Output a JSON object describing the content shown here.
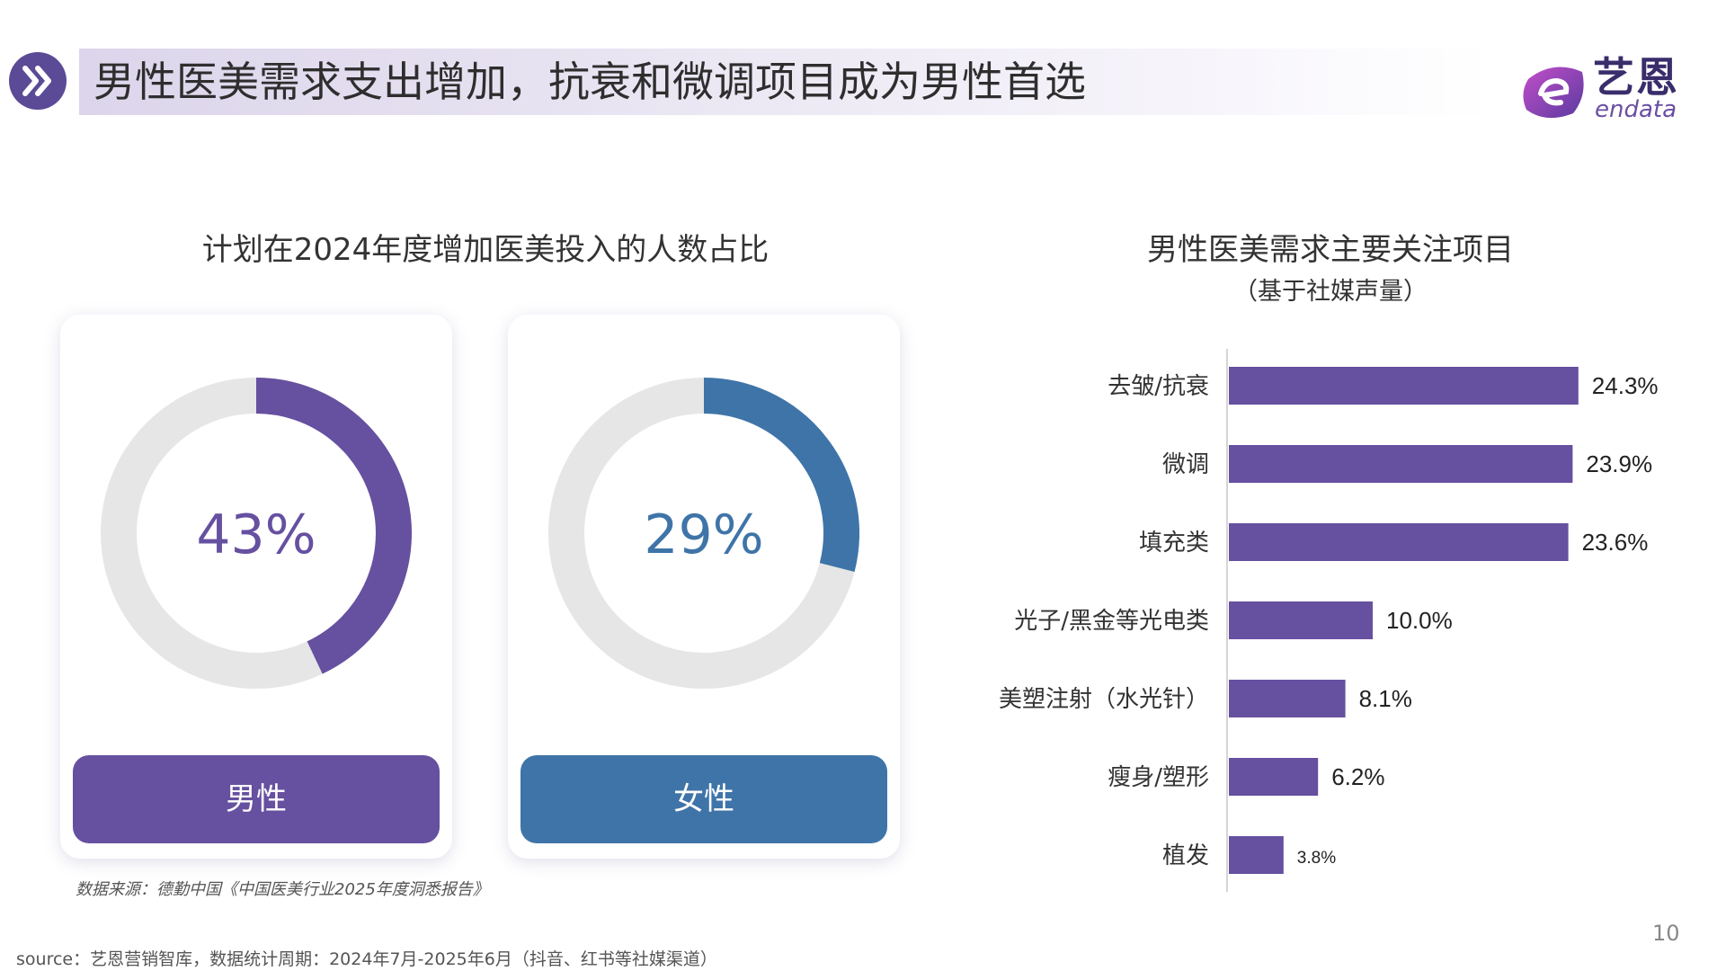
{
  "header": {
    "title": "男性医美需求支出增加，抗衰和微调项目成为男性首选"
  },
  "logo": {
    "cn": "艺恩",
    "en": "endata"
  },
  "left_section": {
    "title": "计划在2024年度增加医美投入的人数占比",
    "cards": [
      {
        "label": "男性",
        "value": 43,
        "value_text": "43%",
        "color": "#6650a0"
      },
      {
        "label": "女性",
        "value": 29,
        "value_text": "29%",
        "color": "#3f74a8"
      }
    ],
    "track_color": "#e6e6e6",
    "source": "数据来源：德勤中国《中国医美行业2025年度洞悉报告》"
  },
  "right_section": {
    "title": "男性医美需求主要关注项目",
    "subtitle": "（基于社媒声量）"
  },
  "chart_data": [
    {
      "type": "donut",
      "categories": [
        "男性"
      ],
      "values": [
        43
      ],
      "unit": "%"
    },
    {
      "type": "donut",
      "categories": [
        "女性"
      ],
      "values": [
        29
      ],
      "unit": "%"
    },
    {
      "type": "bar",
      "orientation": "horizontal",
      "title": "男性医美需求主要关注项目",
      "subtitle": "（基于社媒声量）",
      "categories": [
        "去皱/抗衰",
        "微调",
        "填充类",
        "光子/黑金等光电类",
        "美塑注射（水光针）",
        "瘦身/塑形",
        "植发"
      ],
      "values": [
        24.3,
        23.9,
        23.6,
        10.0,
        8.1,
        6.2,
        3.8
      ],
      "value_labels": [
        "24.3%",
        "23.9%",
        "23.6%",
        "10.0%",
        "8.1%",
        "6.2%",
        "3.8%"
      ],
      "xlim": [
        0,
        25
      ],
      "grid": false,
      "bar_color": "#6650a0"
    }
  ],
  "footer": {
    "source": "source：艺恩营销智库，数据统计周期：2024年7月-2025年6月（抖音、红书等社媒渠道）",
    "page_number": "10"
  }
}
